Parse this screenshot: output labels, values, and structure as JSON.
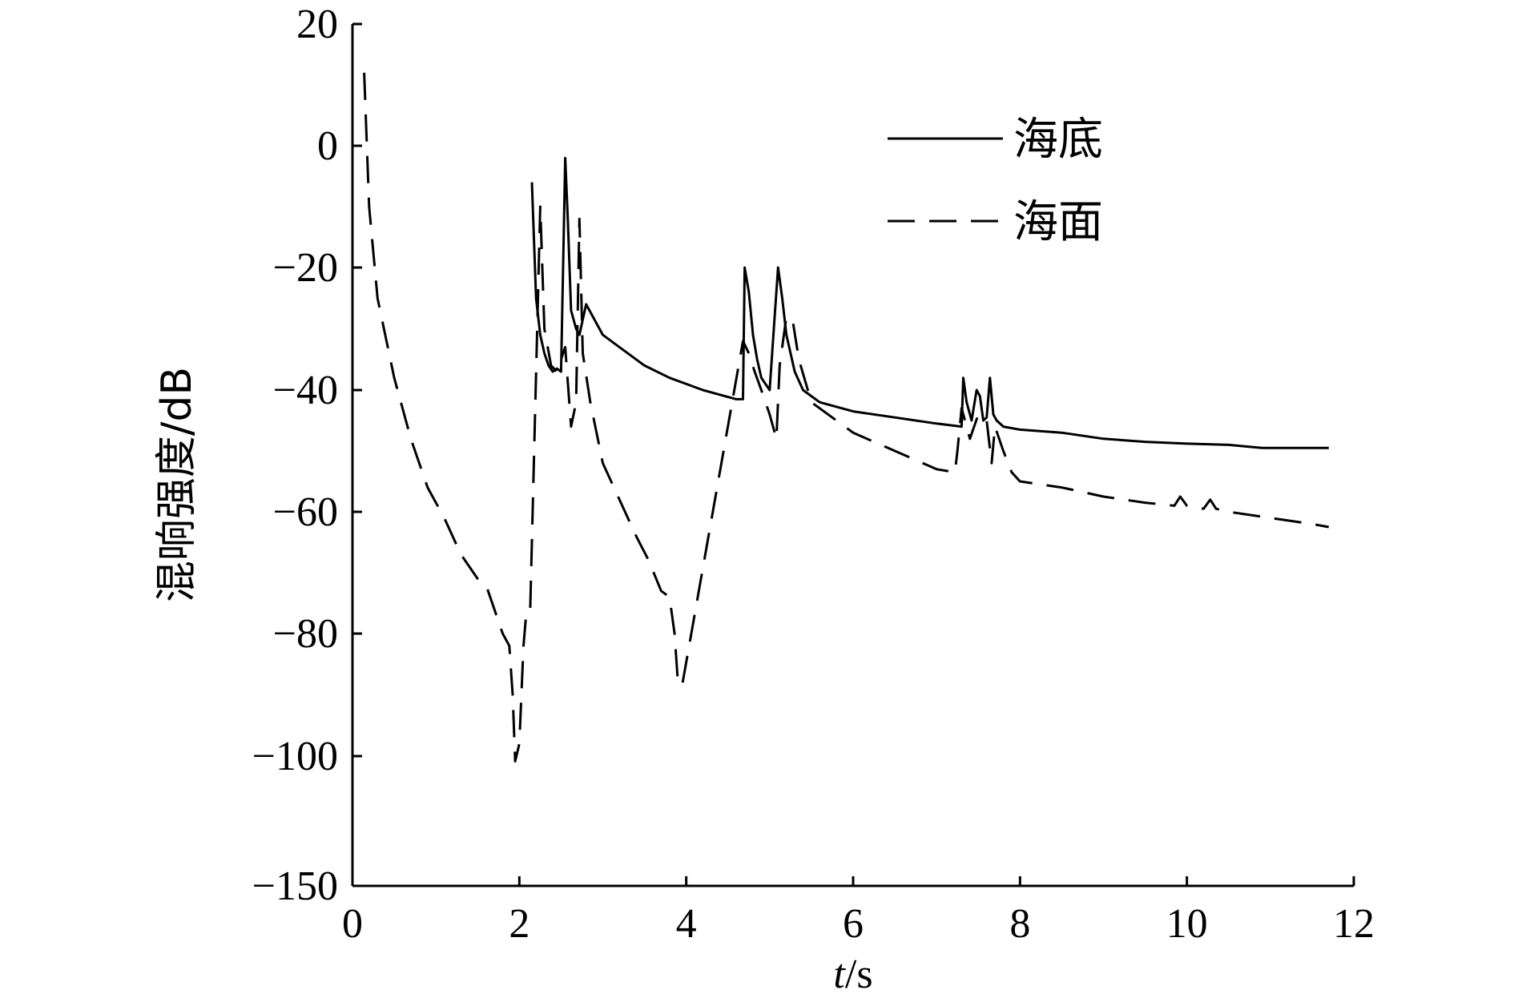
{
  "chart_data": {
    "type": "line",
    "xlabel_italic": "t",
    "xlabel_unit": "/s",
    "ylabel": "混响强度/dB",
    "xlim": [
      0,
      12
    ],
    "ylim": [
      -150,
      20
    ],
    "ytick_values": [
      20,
      0,
      -20,
      -40,
      -60,
      -80,
      -100,
      -150
    ],
    "ytick_labels": [
      "20",
      "0",
      "−20",
      "−40",
      "−60",
      "−80",
      "−100",
      "−150"
    ],
    "xtick_values": [
      0,
      2,
      4,
      6,
      8,
      10,
      12
    ],
    "xtick_labels": [
      "0",
      "2",
      "4",
      "6",
      "8",
      "10",
      "12"
    ],
    "grid": false,
    "legend_position": "top-right",
    "series": [
      {
        "name": "海底",
        "style": "solid",
        "x": [
          2.15,
          2.2,
          2.25,
          2.3,
          2.35,
          2.4,
          2.45,
          2.5,
          2.55,
          2.58,
          2.62,
          2.68,
          2.72,
          2.8,
          3.0,
          3.2,
          3.5,
          3.8,
          4.2,
          4.6,
          4.68,
          4.7,
          4.75,
          4.8,
          4.85,
          4.9,
          4.95,
          5.0,
          5.05,
          5.1,
          5.15,
          5.2,
          5.3,
          5.4,
          5.6,
          6.0,
          6.5,
          7.0,
          7.3,
          7.32,
          7.36,
          7.42,
          7.48,
          7.52,
          7.56,
          7.6,
          7.64,
          7.68,
          7.72,
          7.8,
          8.0,
          8.5,
          9.0,
          9.5,
          10.0,
          10.5,
          10.9,
          11.3,
          11.7
        ],
        "y": [
          -6,
          -25,
          -31,
          -34,
          -36,
          -37,
          -36.5,
          -37,
          -2,
          -12,
          -27,
          -30,
          -31,
          -26,
          -31,
          -33,
          -36,
          -38,
          -40,
          -41.5,
          -41.5,
          -20,
          -24,
          -31,
          -35,
          -38,
          -39,
          -40,
          -30,
          -20,
          -25,
          -31,
          -37,
          -40,
          -42,
          -43.5,
          -44.5,
          -45.5,
          -46,
          -38,
          -42,
          -45,
          -40,
          -41,
          -45,
          -44.5,
          -38,
          -44,
          -45,
          -46,
          -46.5,
          -47,
          -48,
          -48.5,
          -48.8,
          -49,
          -49.5,
          -49.5,
          -49.5
        ]
      },
      {
        "name": "海面",
        "style": "dashed",
        "x": [
          0.14,
          0.2,
          0.3,
          0.5,
          0.7,
          0.9,
          1.1,
          1.3,
          1.5,
          1.6,
          1.7,
          1.8,
          1.88,
          1.92,
          1.95,
          2.0,
          2.05,
          2.08,
          2.1,
          2.13,
          2.25,
          2.3,
          2.38,
          2.45,
          2.55,
          2.62,
          2.68,
          2.72,
          2.76,
          2.85,
          3.0,
          3.2,
          3.4,
          3.55,
          3.7,
          3.8,
          3.86,
          3.9,
          3.95,
          4.68,
          4.75,
          4.82,
          4.9,
          5.0,
          5.08,
          5.12,
          5.2,
          5.28,
          5.35,
          5.5,
          6.0,
          6.5,
          7.0,
          7.22,
          7.25,
          7.3,
          7.4,
          7.5,
          7.6,
          7.66,
          7.7,
          7.8,
          7.9,
          8.0,
          8.5,
          9.0,
          9.5,
          9.85,
          9.92,
          10.0,
          10.2,
          10.28,
          10.35,
          10.5,
          11.0,
          11.5,
          11.7
        ],
        "y": [
          12,
          -10,
          -25,
          -38,
          -48,
          -56,
          -61,
          -67,
          -71,
          -72,
          -76,
          -80,
          -82,
          -90,
          -102,
          -98,
          -82,
          -77,
          -76,
          -76,
          -10,
          -30,
          -36,
          -37,
          -33,
          -46,
          -42,
          -12,
          -34,
          -42,
          -52,
          -58,
          -64,
          -68,
          -73,
          -74,
          -80,
          -88,
          -88.5,
          -32,
          -34,
          -37,
          -40,
          -44,
          -48,
          -36,
          -28,
          -29,
          -35,
          -42,
          -47,
          -50,
          -53,
          -53.5,
          -50,
          -43,
          -48,
          -44,
          -45,
          -52,
          -46,
          -50,
          -53.5,
          -55,
          -56,
          -57.5,
          -58.5,
          -59,
          -57.5,
          -59,
          -59.5,
          -58,
          -59.5,
          -60,
          -61,
          -62,
          -62.5
        ]
      }
    ]
  }
}
